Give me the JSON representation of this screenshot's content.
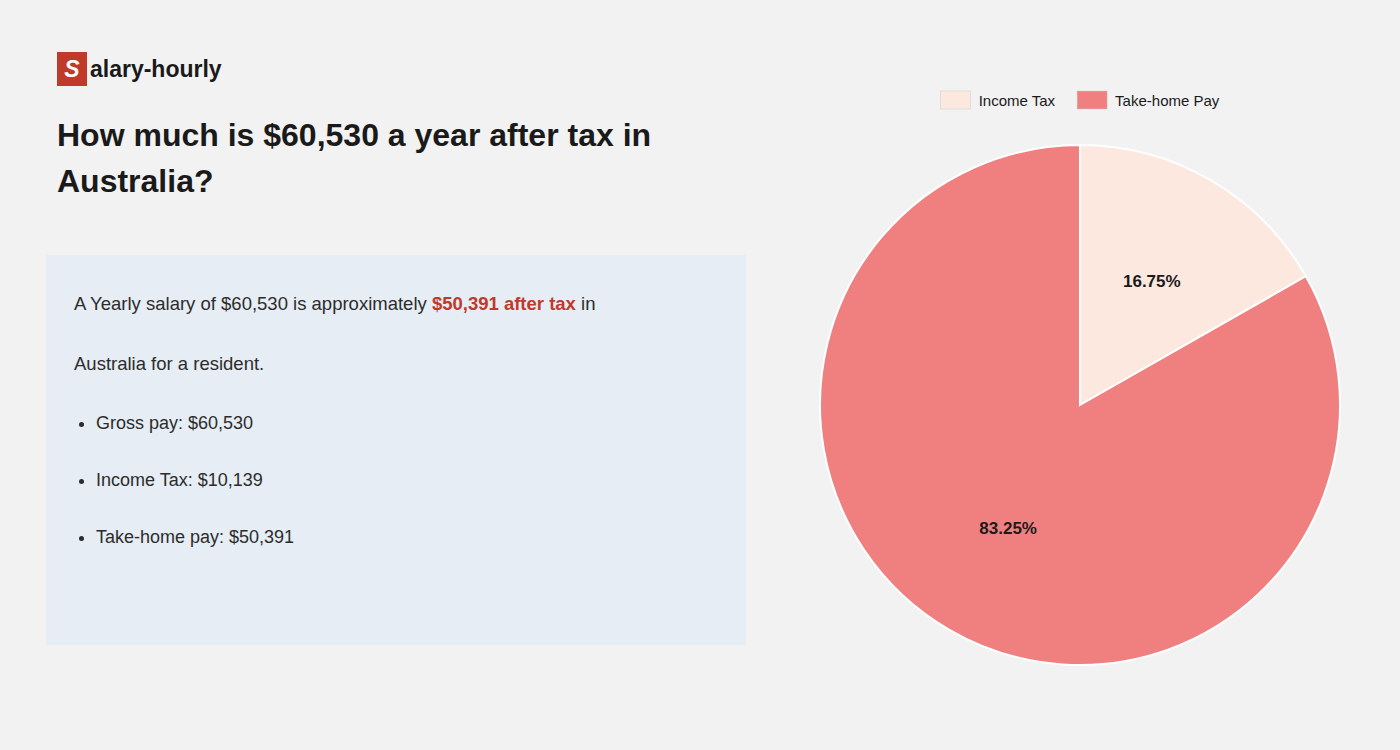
{
  "chart_data": {
    "type": "pie",
    "title": "How much is $60,530 a year after tax in Australia?",
    "categories": [
      "Income Tax",
      "Take-home Pay"
    ],
    "values": [
      16.75,
      83.25
    ],
    "value_labels": [
      "16.75%",
      "83.25%"
    ],
    "colors": [
      "#fce8df",
      "#f08080"
    ],
    "data_labels": true,
    "legend": "top",
    "annotations": [
      {
        "parts": [
          {
            "text": "S",
            "color": "#c0392b"
          },
          {
            "text": "alary-hourly"
          }
        ]
      },
      {
        "parts": [
          {
            "text": "A Yearly salary of $60,530 is approximately "
          },
          {
            "text": "$50,391 after tax",
            "color": "#c0392b"
          },
          {
            "text": " in"
          }
        ]
      },
      {
        "text": "Australia for a resident."
      },
      {
        "items": [
          "Gross pay: $60,530",
          "Income Tax: $10,139",
          "Take-home pay: $50,391"
        ]
      }
    ]
  }
}
